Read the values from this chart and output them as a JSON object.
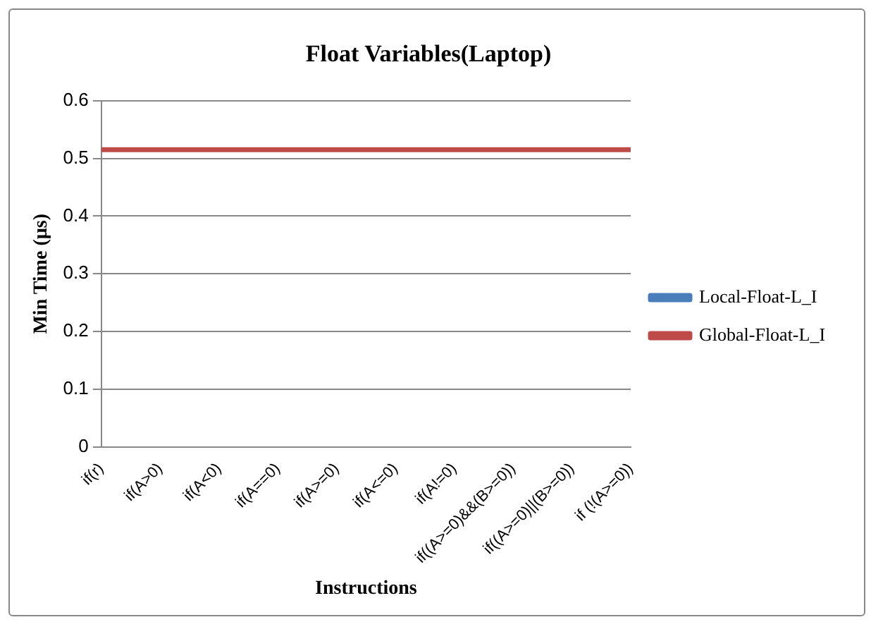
{
  "chart_data": {
    "type": "line",
    "title": "Float Variables(Laptop)",
    "xlabel": "Instructions",
    "ylabel": "Min Time (µs)",
    "categories": [
      "if(r)",
      "if(A>0)",
      "if(A<0)",
      "if(A==0)",
      "if(A>=0)",
      "if(A<=0)",
      "if(A!=0)",
      "if((A>=0)&&(B>=0))",
      "if((A>=0)||(B>=0))",
      "if (!(A>=0))"
    ],
    "series": [
      {
        "name": "Local-Float-L_I",
        "color": "#4a7ebb",
        "values": [
          null,
          null,
          null,
          null,
          null,
          null,
          null,
          null,
          null,
          null
        ]
      },
      {
        "name": "Global-Float-L_I",
        "color": "#be4b48",
        "values": [
          0.515,
          0.515,
          0.515,
          0.515,
          0.515,
          0.515,
          0.515,
          0.515,
          0.515,
          0.515
        ]
      }
    ],
    "ylim": [
      0,
      0.6
    ],
    "yticks": [
      0,
      0.1,
      0.2,
      0.3,
      0.4,
      0.5,
      0.6
    ],
    "grid": "y",
    "legend": "right",
    "marker": "none",
    "line_style": "solid"
  }
}
